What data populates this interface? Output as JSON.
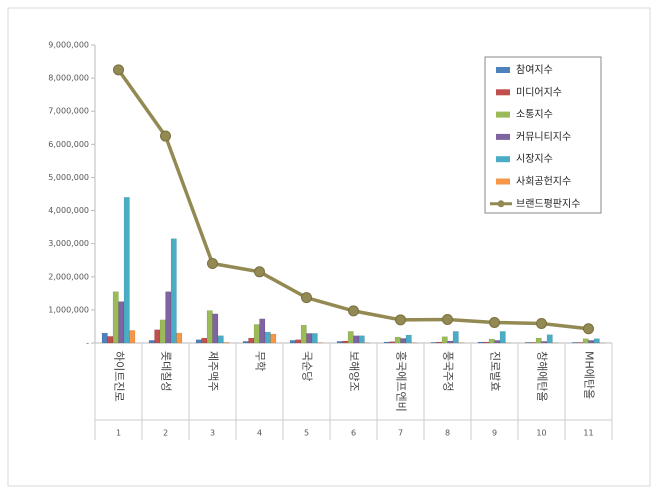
{
  "chart_data": {
    "type": "bar-line",
    "categories": [
      "하이트진로",
      "롯데칠성",
      "제주맥주",
      "무학",
      "국순당",
      "보해양조",
      "흥국에프엔비",
      "풍국주정",
      "진로발효",
      "창해에탄올",
      "MH에탄올"
    ],
    "ranks": [
      1,
      2,
      3,
      4,
      5,
      6,
      7,
      8,
      9,
      10,
      11
    ],
    "ylim": [
      0,
      9000000
    ],
    "yticks": [
      {
        "value": 0,
        "label": "-"
      },
      {
        "value": 1000000,
        "label": "1,000,000"
      },
      {
        "value": 2000000,
        "label": "2,000,000"
      },
      {
        "value": 3000000,
        "label": "3,000,000"
      },
      {
        "value": 4000000,
        "label": "4,000,000"
      },
      {
        "value": 5000000,
        "label": "5,000,000"
      },
      {
        "value": 6000000,
        "label": "6,000,000"
      },
      {
        "value": 7000000,
        "label": "7,000,000"
      },
      {
        "value": 8000000,
        "label": "8,000,000"
      },
      {
        "value": 9000000,
        "label": "9,000,000"
      }
    ],
    "series": [
      {
        "name": "참여지수",
        "type": "bar",
        "color": "#4f81bd",
        "values": [
          300000,
          80000,
          100000,
          50000,
          80000,
          50000,
          30000,
          20000,
          30000,
          20000,
          20000
        ]
      },
      {
        "name": "미디어지수",
        "type": "bar",
        "color": "#c0504d",
        "values": [
          200000,
          400000,
          150000,
          150000,
          100000,
          60000,
          40000,
          30000,
          30000,
          20000,
          20000
        ]
      },
      {
        "name": "소통지수",
        "type": "bar",
        "color": "#9bbb59",
        "values": [
          1550000,
          700000,
          980000,
          560000,
          540000,
          350000,
          180000,
          190000,
          120000,
          150000,
          130000
        ]
      },
      {
        "name": "커뮤니티지수",
        "type": "bar",
        "color": "#8064a2",
        "values": [
          1250000,
          1550000,
          880000,
          730000,
          290000,
          220000,
          140000,
          60000,
          80000,
          50000,
          80000
        ]
      },
      {
        "name": "시장지수",
        "type": "bar",
        "color": "#4bacc6",
        "values": [
          4400000,
          3150000,
          220000,
          330000,
          290000,
          220000,
          240000,
          350000,
          350000,
          250000,
          130000
        ]
      },
      {
        "name": "사회공헌지수",
        "type": "bar",
        "color": "#f79646",
        "values": [
          380000,
          300000,
          20000,
          270000,
          10000,
          10000,
          10000,
          10000,
          5000,
          5000,
          5000
        ]
      },
      {
        "name": "브랜드평판지수",
        "type": "line",
        "color": "#938953",
        "values": [
          8250000,
          6250000,
          2400000,
          2150000,
          1370000,
          970000,
          700000,
          710000,
          620000,
          590000,
          430000
        ]
      }
    ]
  }
}
